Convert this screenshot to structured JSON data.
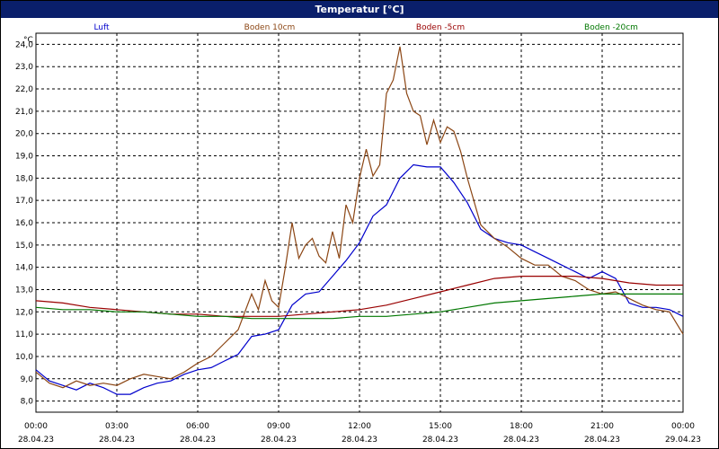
{
  "window": {
    "title": "Temperatur [°C]"
  },
  "chart_data": {
    "type": "line",
    "title": "Temperatur [°C]",
    "ylabel": "°C",
    "xlabel": "",
    "ylim": [
      7.5,
      24.5
    ],
    "yticks": [
      "8,0",
      "9,0",
      "10,0",
      "11,0",
      "12,0",
      "13,0",
      "14,0",
      "15,0",
      "16,0",
      "17,0",
      "18,0",
      "19,0",
      "20,0",
      "21,0",
      "22,0",
      "23,0",
      "24,0"
    ],
    "ytick_values": [
      8,
      9,
      10,
      11,
      12,
      13,
      14,
      15,
      16,
      17,
      18,
      19,
      20,
      21,
      22,
      23,
      24
    ],
    "xlim": [
      0,
      24
    ],
    "xticks": [
      {
        "time": "00:00",
        "date": "28.04.23",
        "h": 0
      },
      {
        "time": "03:00",
        "date": "28.04.23",
        "h": 3
      },
      {
        "time": "06:00",
        "date": "28.04.23",
        "h": 6
      },
      {
        "time": "09:00",
        "date": "28.04.23",
        "h": 9
      },
      {
        "time": "12:00",
        "date": "28.04.23",
        "h": 12
      },
      {
        "time": "15:00",
        "date": "28.04.23",
        "h": 15
      },
      {
        "time": "18:00",
        "date": "28.04.23",
        "h": 18
      },
      {
        "time": "21:00",
        "date": "28.04.23",
        "h": 21
      },
      {
        "time": "00:00",
        "date": "29.04.23",
        "h": 24
      }
    ],
    "grid": true,
    "legend": "top",
    "series": [
      {
        "name": "Luft",
        "color": "#0000cc",
        "x": [
          0,
          0.5,
          1,
          1.5,
          2,
          2.5,
          3,
          3.5,
          4,
          4.5,
          5,
          5.5,
          6,
          6.5,
          7,
          7.5,
          8,
          8.5,
          9,
          9.5,
          10,
          10.5,
          11,
          11.5,
          12,
          12.5,
          13,
          13.5,
          14,
          14.5,
          15,
          15.5,
          16,
          16.5,
          17,
          17.5,
          18,
          18.5,
          19,
          19.5,
          20,
          20.5,
          21,
          21.5,
          22,
          22.5,
          23,
          23.5,
          24
        ],
        "values": [
          9.4,
          8.9,
          8.7,
          8.5,
          8.8,
          8.6,
          8.3,
          8.3,
          8.6,
          8.8,
          8.9,
          9.2,
          9.4,
          9.5,
          9.8,
          10.1,
          10.9,
          11.0,
          11.2,
          12.3,
          12.8,
          12.9,
          13.6,
          14.3,
          15.1,
          16.3,
          16.8,
          18.0,
          18.6,
          18.5,
          18.5,
          17.8,
          16.9,
          15.7,
          15.3,
          15.1,
          15.0,
          14.7,
          14.4,
          14.1,
          13.8,
          13.5,
          13.8,
          13.5,
          12.4,
          12.2,
          12.2,
          12.1,
          11.8
        ]
      },
      {
        "name": "Boden 10cm",
        "color": "#8b4513",
        "x": [
          0,
          0.5,
          1,
          1.5,
          2,
          2.5,
          3,
          3.5,
          4,
          4.5,
          5,
          5.5,
          6,
          6.5,
          7,
          7.5,
          8,
          8.25,
          8.5,
          8.75,
          9,
          9.25,
          9.5,
          9.75,
          10,
          10.25,
          10.5,
          10.75,
          11,
          11.25,
          11.5,
          11.75,
          12,
          12.25,
          12.5,
          12.75,
          13,
          13.25,
          13.5,
          13.75,
          14,
          14.25,
          14.5,
          14.75,
          15,
          15.25,
          15.5,
          15.75,
          16,
          16.5,
          17,
          17.5,
          18,
          18.5,
          19,
          19.5,
          20,
          20.5,
          21,
          21.5,
          22,
          22.5,
          23,
          23.5,
          24
        ],
        "values": [
          9.3,
          8.8,
          8.6,
          8.9,
          8.7,
          8.8,
          8.7,
          9.0,
          9.2,
          9.1,
          9.0,
          9.3,
          9.7,
          10.0,
          10.6,
          11.2,
          12.8,
          12.1,
          13.4,
          12.5,
          12.2,
          14.0,
          16.0,
          14.4,
          15.0,
          15.3,
          14.5,
          14.2,
          15.6,
          14.4,
          16.8,
          16.0,
          18.0,
          19.3,
          18.1,
          18.6,
          21.8,
          22.4,
          23.9,
          21.8,
          21.0,
          20.8,
          19.5,
          20.6,
          19.6,
          20.3,
          20.1,
          19.2,
          18.0,
          15.9,
          15.3,
          14.9,
          14.4,
          14.1,
          14.1,
          13.6,
          13.4,
          13.0,
          12.8,
          12.9,
          12.6,
          12.3,
          12.1,
          12.0,
          11.0
        ]
      },
      {
        "name": "Boden -5cm",
        "color": "#990000",
        "x": [
          0,
          1,
          2,
          3,
          4,
          5,
          6,
          7,
          8,
          9,
          10,
          11,
          12,
          13,
          14,
          15,
          16,
          17,
          18,
          19,
          20,
          21,
          22,
          23,
          24
        ],
        "values": [
          12.5,
          12.4,
          12.2,
          12.1,
          12.0,
          11.9,
          11.9,
          11.8,
          11.8,
          11.8,
          11.9,
          12.0,
          12.1,
          12.3,
          12.6,
          12.9,
          13.2,
          13.5,
          13.6,
          13.6,
          13.6,
          13.5,
          13.3,
          13.2,
          13.2
        ]
      },
      {
        "name": "Boden -20cm",
        "color": "#007700",
        "x": [
          0,
          1,
          2,
          3,
          4,
          5,
          6,
          7,
          8,
          9,
          10,
          11,
          12,
          13,
          14,
          15,
          16,
          17,
          18,
          19,
          20,
          21,
          22,
          23,
          24
        ],
        "values": [
          12.2,
          12.1,
          12.1,
          12.0,
          12.0,
          11.9,
          11.8,
          11.8,
          11.7,
          11.7,
          11.7,
          11.7,
          11.8,
          11.8,
          11.9,
          12.0,
          12.2,
          12.4,
          12.5,
          12.6,
          12.7,
          12.8,
          12.8,
          12.8,
          12.8
        ]
      }
    ]
  }
}
